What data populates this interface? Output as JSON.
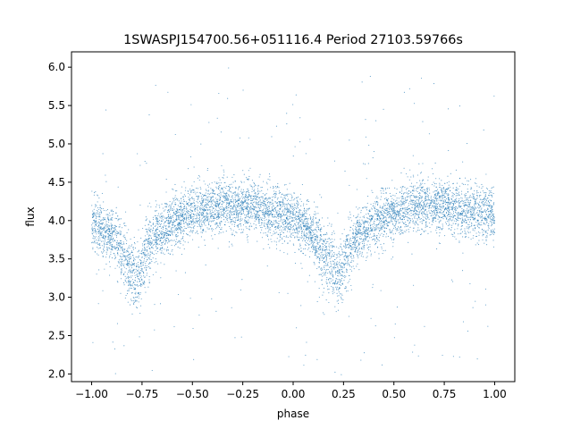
{
  "chart_data": {
    "type": "scatter",
    "title": "1SWASPJ154700.56+051116.4 Period 27103.59766s",
    "xlabel": "phase",
    "ylabel": "flux",
    "xlim": [
      -1.1,
      1.1
    ],
    "ylim": [
      1.9,
      6.2
    ],
    "xticks": [
      -1.0,
      -0.75,
      -0.5,
      -0.25,
      0.0,
      0.25,
      0.5,
      0.75,
      1.0
    ],
    "xtick_labels": [
      "−1.00",
      "−0.75",
      "−0.50",
      "−0.25",
      "0.00",
      "0.25",
      "0.50",
      "0.75",
      "1.00"
    ],
    "yticks": [
      2.0,
      2.5,
      3.0,
      3.5,
      4.0,
      4.5,
      5.0,
      5.5,
      6.0
    ],
    "ytick_labels": [
      "2.0",
      "2.5",
      "3.0",
      "3.5",
      "4.0",
      "4.5",
      "5.0",
      "5.5",
      "6.0"
    ],
    "point_color": "#1f77b4",
    "grid": false,
    "legend": "none",
    "profile": {
      "phase": [
        -1.0,
        -0.9,
        -0.85,
        -0.8,
        -0.78,
        -0.75,
        -0.7,
        -0.6,
        -0.5,
        -0.4,
        -0.3,
        -0.25,
        -0.2,
        -0.1,
        0.0,
        0.05,
        0.1,
        0.15,
        0.2,
        0.22,
        0.25,
        0.3,
        0.4,
        0.5,
        0.6,
        0.7,
        0.75,
        0.8,
        0.9,
        1.0
      ],
      "flux_median": [
        4.0,
        3.8,
        3.55,
        3.35,
        3.3,
        3.4,
        3.75,
        3.98,
        4.1,
        4.18,
        4.2,
        4.2,
        4.18,
        4.1,
        4.05,
        3.95,
        3.8,
        3.55,
        3.35,
        3.3,
        3.4,
        3.75,
        3.98,
        4.1,
        4.18,
        4.2,
        4.2,
        4.18,
        4.1,
        4.05
      ]
    }
  }
}
